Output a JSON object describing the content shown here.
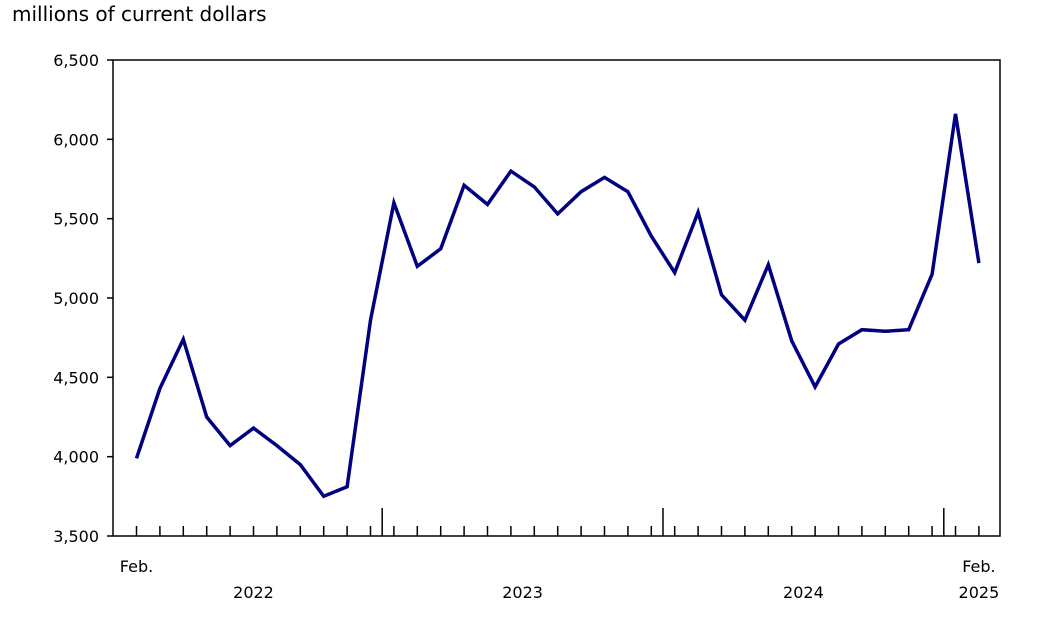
{
  "unit_label": "millions of current dollars",
  "colors": {
    "line": "#000080",
    "frame": "#000000"
  },
  "chart_data": {
    "type": "line",
    "title": "",
    "ylabel": "millions of current dollars",
    "xlabel": "",
    "ylim": [
      3500,
      6500
    ],
    "yticks": [
      3500,
      4000,
      4500,
      5000,
      5500,
      6000,
      6500
    ],
    "ytick_labels": [
      "3,500",
      "4,000",
      "4,500",
      "5,000",
      "5,500",
      "6,000",
      "6,500"
    ],
    "grid": false,
    "x": [
      "2022-02",
      "2022-03",
      "2022-04",
      "2022-05",
      "2022-06",
      "2022-07",
      "2022-08",
      "2022-09",
      "2022-10",
      "2022-11",
      "2022-12",
      "2023-01",
      "2023-02",
      "2023-03",
      "2023-04",
      "2023-05",
      "2023-06",
      "2023-07",
      "2023-08",
      "2023-09",
      "2023-10",
      "2023-11",
      "2023-12",
      "2024-01",
      "2024-02",
      "2024-03",
      "2024-04",
      "2024-05",
      "2024-06",
      "2024-07",
      "2024-08",
      "2024-09",
      "2024-10",
      "2024-11",
      "2024-12",
      "2025-01",
      "2025-02"
    ],
    "series": [
      {
        "values": [
          3990,
          4430,
          4740,
          4250,
          4070,
          4180,
          4070,
          3950,
          3750,
          3810,
          4860,
          5600,
          5200,
          5310,
          5710,
          5590,
          5800,
          5700,
          5530,
          5670,
          5760,
          5670,
          5390,
          5160,
          5540,
          5020,
          4860,
          5210,
          4730,
          4440,
          4710,
          4800,
          4790,
          4800,
          5150,
          6160,
          5220
        ]
      }
    ],
    "month_labels": [
      {
        "label": "Feb.",
        "index": 0
      },
      {
        "label": "Feb.",
        "index": 36
      }
    ],
    "year_labels": [
      {
        "label": "2022",
        "start": 0,
        "end": 10
      },
      {
        "label": "2023",
        "start": 11,
        "end": 22
      },
      {
        "label": "2024",
        "start": 23,
        "end": 34
      },
      {
        "label": "2025",
        "start": 36,
        "end": 36
      }
    ],
    "year_boundaries": [
      11,
      23,
      35
    ]
  }
}
